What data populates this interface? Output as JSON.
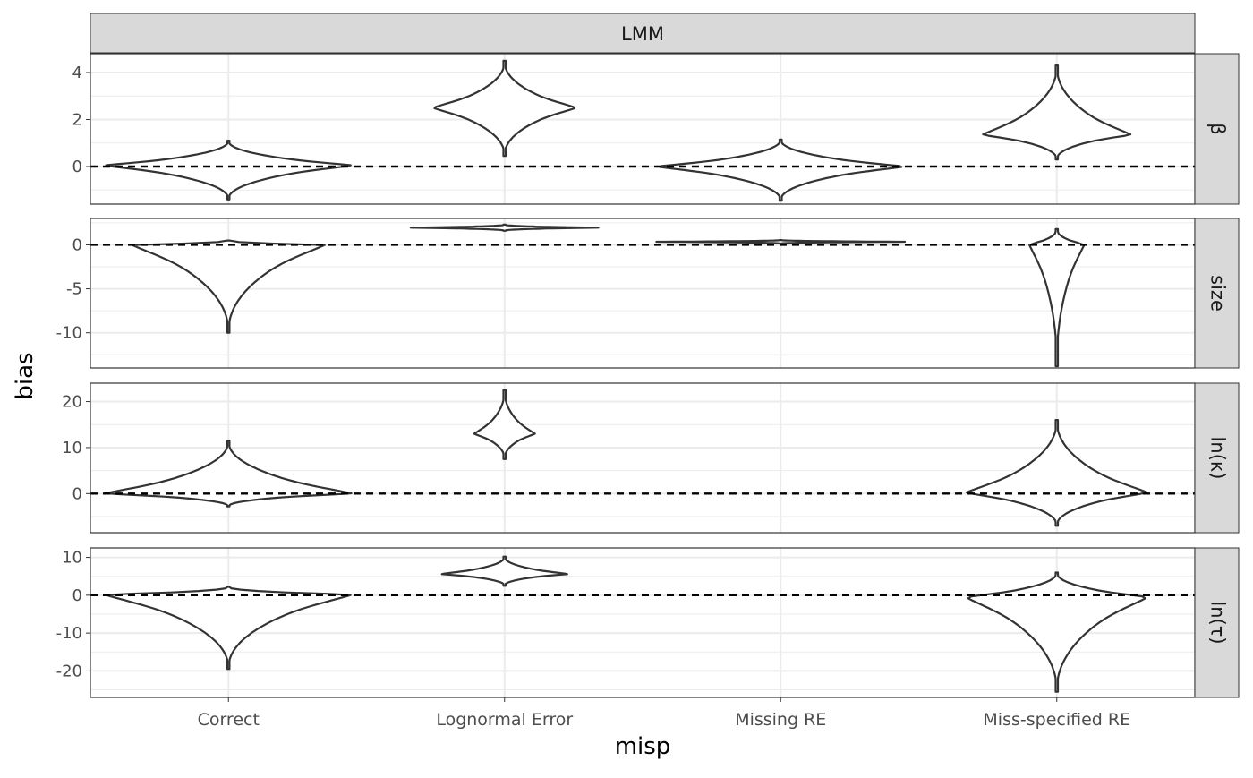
{
  "chart_data": {
    "type": "violin",
    "facet_title": "LMM",
    "xlabel": "misp",
    "ylabel": "bias",
    "categories": [
      "Correct",
      "Lognormal Error",
      "Missing RE",
      "Miss-specified RE"
    ],
    "reference_line": 0,
    "grid": true,
    "panels": [
      {
        "strip": "β",
        "ylim": [
          -1.6,
          4.8
        ],
        "ticks": [
          4,
          2,
          0
        ],
        "tick_labels": [
          "4",
          "2",
          "0"
        ],
        "violins": [
          {
            "category": "Correct",
            "center": 0.05,
            "min": -1.4,
            "max": 1.1,
            "halfwidth": 0.45
          },
          {
            "category": "Lognormal Error",
            "center": 2.5,
            "min": 0.45,
            "max": 4.5,
            "halfwidth": 0.26
          },
          {
            "category": "Missing RE",
            "center": 0.0,
            "min": -1.45,
            "max": 1.15,
            "halfwidth": 0.45
          },
          {
            "category": "Miss-specified RE",
            "center": 1.35,
            "min": 0.3,
            "max": 4.3,
            "halfwidth": 0.27
          }
        ]
      },
      {
        "strip": "size",
        "ylim": [
          -14,
          3
        ],
        "ticks": [
          0,
          -5,
          -10
        ],
        "tick_labels": [
          "0",
          "-5",
          "-10"
        ],
        "violins": [
          {
            "category": "Correct",
            "center": 0.0,
            "min": -10,
            "max": 0.5,
            "halfwidth": 0.35
          },
          {
            "category": "Lognormal Error",
            "center": 1.95,
            "min": 1.6,
            "max": 2.3,
            "halfwidth": 0.34
          },
          {
            "category": "Missing RE",
            "center": 0.35,
            "min": 0.15,
            "max": 0.55,
            "halfwidth": 0.45
          },
          {
            "category": "Miss-specified RE",
            "center": 0.05,
            "min": -13.8,
            "max": 1.8,
            "halfwidth": 0.1
          }
        ]
      },
      {
        "strip": "ln(κ)",
        "ylim": [
          -8.5,
          24
        ],
        "ticks": [
          20,
          10,
          0
        ],
        "tick_labels": [
          "20",
          "10",
          "0"
        ],
        "violins": [
          {
            "category": "Correct",
            "center": 0.0,
            "min": -2.8,
            "max": 11.5,
            "halfwidth": 0.45
          },
          {
            "category": "Lognormal Error",
            "center": 13.0,
            "min": 7.5,
            "max": 22.5,
            "halfwidth": 0.11
          },
          {
            "category": "Miss-specified RE",
            "center": 0.2,
            "min": -7.0,
            "max": 16.0,
            "halfwidth": 0.33
          }
        ]
      },
      {
        "strip": "ln(τ)",
        "ylim": [
          -27,
          12.5
        ],
        "ticks": [
          10,
          0,
          -10,
          -20
        ],
        "tick_labels": [
          "10",
          "0",
          "-10",
          "-20"
        ],
        "violins": [
          {
            "category": "Correct",
            "center": 0.2,
            "min": -19.5,
            "max": 2.2,
            "halfwidth": 0.45
          },
          {
            "category": "Lognormal Error",
            "center": 5.6,
            "min": 2.5,
            "max": 10.2,
            "halfwidth": 0.23
          },
          {
            "category": "Miss-specified RE",
            "center": -0.5,
            "min": -25.5,
            "max": 6.0,
            "halfwidth": 0.33
          }
        ]
      }
    ]
  }
}
